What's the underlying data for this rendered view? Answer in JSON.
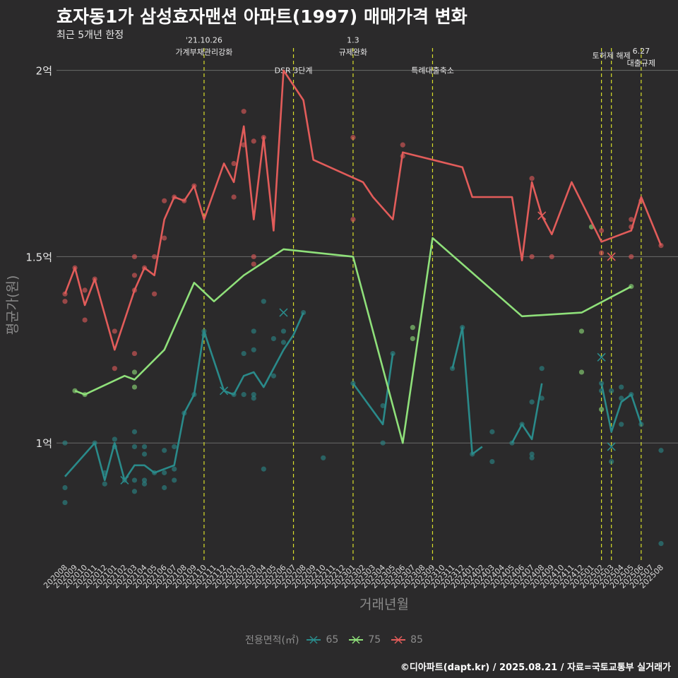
{
  "header": {
    "title": "효자동1가 삼성효자맨션 아파트(1997) 매매가격 변화",
    "subtitle": "최근 5개년 한정"
  },
  "caption": "©디아파트(dapt.kr) / 2025.08.21 / 자료=국토교통부 실거래가",
  "colors": {
    "background": "#2b2a2b",
    "s65": "#2a8a8a",
    "s75": "#8fe07a",
    "s85": "#e25c5a",
    "event_line": "#d8df2a",
    "grid": "#6a6a6a"
  },
  "chart_data": {
    "type": "line",
    "title": "효자동1가 삼성효자맨션 아파트(1997) 매매가격 변화",
    "subtitle": "최근 5개년 한정",
    "xlabel": "거래년월",
    "ylabel": "평균가(원)",
    "ylim": [
      0.68,
      2.06
    ],
    "y_ticks": [
      {
        "value": 1.0,
        "label": "1억"
      },
      {
        "value": 1.5,
        "label": "1.5억"
      },
      {
        "value": 2.0,
        "label": "2억"
      }
    ],
    "x_labels": [
      "202008",
      "202009",
      "202010",
      "202011",
      "202012",
      "202101",
      "202102",
      "202103",
      "202104",
      "202105",
      "202106",
      "202107",
      "202108",
      "202109",
      "202110",
      "202111",
      "202112",
      "202201",
      "202202",
      "202203",
      "202204",
      "202205",
      "202206",
      "202207",
      "202208",
      "202209",
      "202210",
      "202211",
      "202212",
      "202301",
      "202302",
      "202303",
      "202304",
      "202305",
      "202306",
      "202307",
      "202308",
      "202309",
      "202310",
      "202311",
      "202312",
      "202401",
      "202402",
      "202403",
      "202404",
      "202405",
      "202406",
      "202407",
      "202408",
      "202409",
      "202410",
      "202411",
      "202412",
      "202501",
      "202502",
      "202503",
      "202504",
      "202505",
      "202506",
      "202507",
      "202508"
    ],
    "legend": {
      "title": "전용면적(㎡)",
      "position": "bottom",
      "items": [
        "65",
        "75",
        "85"
      ]
    },
    "events": [
      {
        "x": 14,
        "lines": [
          "'21.10.26",
          "가계부채관리강화"
        ],
        "label_y": 2.05
      },
      {
        "x": 23,
        "lines": [
          "DSR 3단계"
        ],
        "label_y": 2.0
      },
      {
        "x": 29,
        "lines": [
          "1.3",
          "규제완화"
        ],
        "label_y": 2.05
      },
      {
        "x": 37,
        "lines": [
          "특례대출축소"
        ],
        "label_y": 2.0
      },
      {
        "x": 54,
        "lines": [],
        "label_y": 2.0
      },
      {
        "x": 55,
        "lines": [
          "토허제 해제"
        ],
        "label_y": 2.04
      },
      {
        "x": 58,
        "lines": [
          "6.27",
          "대출규제"
        ],
        "label_y": 2.02
      }
    ],
    "series": [
      {
        "name": "85",
        "color": "#e25c5a",
        "line": [
          [
            0,
            1.4
          ],
          [
            1,
            1.47
          ],
          [
            2,
            1.37
          ],
          [
            3,
            1.44
          ],
          [
            5,
            1.25
          ],
          [
            7,
            1.41
          ],
          [
            8,
            1.47
          ],
          [
            9,
            1.45
          ],
          [
            10,
            1.6
          ],
          [
            11,
            1.66
          ],
          [
            12,
            1.65
          ],
          [
            13,
            1.69
          ],
          [
            14,
            1.6
          ],
          [
            16,
            1.75
          ],
          [
            17,
            1.7
          ],
          [
            18,
            1.85
          ],
          [
            19,
            1.6
          ],
          [
            20,
            1.82
          ],
          [
            21,
            1.57
          ],
          [
            22,
            2.0
          ],
          [
            24,
            1.92
          ],
          [
            25,
            1.76
          ],
          [
            30,
            1.7
          ],
          [
            31,
            1.66
          ],
          [
            33,
            1.6
          ],
          [
            34,
            1.78
          ],
          [
            40,
            1.74
          ],
          [
            41,
            1.66
          ],
          [
            45,
            1.66
          ],
          [
            46,
            1.49
          ],
          [
            47,
            1.7
          ],
          [
            48,
            1.61
          ],
          [
            49,
            1.56
          ],
          [
            51,
            1.7
          ],
          [
            54,
            1.54
          ],
          [
            57,
            1.57
          ],
          [
            58,
            1.66
          ],
          [
            60,
            1.53
          ]
        ],
        "points": [
          [
            0,
            1.4
          ],
          [
            0,
            1.38
          ],
          [
            1,
            1.47
          ],
          [
            2,
            1.41
          ],
          [
            2,
            1.33
          ],
          [
            3,
            1.44
          ],
          [
            5,
            1.3
          ],
          [
            5,
            1.2
          ],
          [
            7,
            1.5
          ],
          [
            7,
            1.45
          ],
          [
            7,
            1.41
          ],
          [
            7,
            1.24
          ],
          [
            8,
            1.47
          ],
          [
            9,
            1.5
          ],
          [
            9,
            1.4
          ],
          [
            10,
            1.65
          ],
          [
            10,
            1.55
          ],
          [
            11,
            1.66
          ],
          [
            12,
            1.65
          ],
          [
            13,
            1.69
          ],
          [
            18,
            1.89
          ],
          [
            18,
            1.8
          ],
          [
            17,
            1.75
          ],
          [
            17,
            1.66
          ],
          [
            19,
            1.81
          ],
          [
            19,
            1.5
          ],
          [
            19,
            1.48
          ],
          [
            20,
            1.82
          ],
          [
            29,
            1.82
          ],
          [
            29,
            1.6
          ],
          [
            34,
            1.8
          ],
          [
            34,
            1.77
          ],
          [
            47,
            1.71
          ],
          [
            47,
            1.5
          ],
          [
            49,
            1.5
          ],
          [
            54,
            1.57
          ],
          [
            54,
            1.51
          ],
          [
            57,
            1.6
          ],
          [
            57,
            1.58
          ],
          [
            57,
            1.5
          ],
          [
            58,
            1.65
          ],
          [
            60,
            1.53
          ]
        ],
        "cancelled": [
          [
            48,
            1.61
          ],
          [
            55,
            1.5
          ]
        ]
      },
      {
        "name": "75",
        "color": "#8fe07a",
        "line": [
          [
            1,
            1.14
          ],
          [
            2,
            1.13
          ],
          [
            6,
            1.18
          ],
          [
            7,
            1.17
          ],
          [
            10,
            1.25
          ],
          [
            13,
            1.43
          ],
          [
            15,
            1.38
          ],
          [
            18,
            1.45
          ],
          [
            22,
            1.52
          ],
          [
            29,
            1.5
          ],
          [
            34,
            1.0
          ],
          [
            37,
            1.55
          ],
          [
            46,
            1.34
          ],
          [
            52,
            1.35
          ],
          [
            57,
            1.42
          ]
        ],
        "points": [
          [
            1,
            1.14
          ],
          [
            2,
            1.13
          ],
          [
            7,
            1.19
          ],
          [
            7,
            1.15
          ],
          [
            35,
            1.31
          ],
          [
            35,
            1.28
          ],
          [
            52,
            1.3
          ],
          [
            52,
            1.19
          ],
          [
            53,
            1.58
          ],
          [
            54,
            1.09
          ],
          [
            57,
            1.42
          ]
        ],
        "cancelled": []
      },
      {
        "name": "65",
        "color": "#2a8a8a",
        "segments": [
          [
            [
              0,
              0.91
            ],
            [
              3,
              1.0
            ],
            [
              4,
              0.9
            ],
            [
              5,
              1.0
            ],
            [
              6,
              0.9
            ],
            [
              7,
              0.94
            ],
            [
              8,
              0.94
            ],
            [
              9,
              0.92
            ],
            [
              11,
              0.94
            ],
            [
              12,
              1.08
            ],
            [
              13,
              1.13
            ],
            [
              14,
              1.3
            ],
            [
              16,
              1.14
            ],
            [
              17,
              1.13
            ],
            [
              18,
              1.18
            ],
            [
              19,
              1.19
            ],
            [
              20,
              1.15
            ],
            [
              22,
              1.25
            ],
            [
              23,
              1.29
            ],
            [
              24,
              1.35
            ]
          ],
          [
            [
              29,
              1.16
            ],
            [
              32,
              1.05
            ],
            [
              33,
              1.24
            ]
          ],
          [
            [
              39,
              1.2
            ],
            [
              40,
              1.31
            ],
            [
              41,
              0.97
            ],
            [
              42,
              0.99
            ]
          ],
          [
            [
              45,
              1.0
            ],
            [
              46,
              1.05
            ],
            [
              47,
              1.01
            ],
            [
              48,
              1.16
            ]
          ],
          [
            [
              54,
              1.16
            ],
            [
              55,
              1.03
            ],
            [
              56,
              1.11
            ],
            [
              57,
              1.13
            ],
            [
              58,
              1.05
            ]
          ]
        ],
        "points": [
          [
            0,
            1.0
          ],
          [
            0,
            0.88
          ],
          [
            0,
            0.84
          ],
          [
            3,
            1.0
          ],
          [
            4,
            0.92
          ],
          [
            4,
            0.89
          ],
          [
            5,
            1.01
          ],
          [
            5,
            0.99
          ],
          [
            6,
            0.9
          ],
          [
            7,
            1.03
          ],
          [
            7,
            0.99
          ],
          [
            7,
            0.9
          ],
          [
            7,
            0.87
          ],
          [
            8,
            0.99
          ],
          [
            8,
            0.97
          ],
          [
            8,
            0.9
          ],
          [
            8,
            0.89
          ],
          [
            9,
            0.92
          ],
          [
            10,
            0.98
          ],
          [
            10,
            0.92
          ],
          [
            10,
            0.88
          ],
          [
            11,
            0.99
          ],
          [
            11,
            0.93
          ],
          [
            11,
            0.9
          ],
          [
            12,
            1.08
          ],
          [
            13,
            1.13
          ],
          [
            14,
            1.3
          ],
          [
            14,
            1.29
          ],
          [
            17,
            1.13
          ],
          [
            18,
            1.13
          ],
          [
            18,
            1.24
          ],
          [
            19,
            1.3
          ],
          [
            19,
            1.25
          ],
          [
            19,
            1.13
          ],
          [
            19,
            1.12
          ],
          [
            20,
            1.38
          ],
          [
            20,
            0.93
          ],
          [
            21,
            1.28
          ],
          [
            21,
            1.18
          ],
          [
            22,
            1.3
          ],
          [
            22,
            1.27
          ],
          [
            24,
            1.35
          ],
          [
            26,
            0.96
          ],
          [
            29,
            1.16
          ],
          [
            32,
            1.1
          ],
          [
            32,
            1.0
          ],
          [
            33,
            1.24
          ],
          [
            39,
            1.2
          ],
          [
            40,
            1.31
          ],
          [
            41,
            0.97
          ],
          [
            43,
            1.03
          ],
          [
            43,
            0.95
          ],
          [
            45,
            1.0
          ],
          [
            46,
            1.05
          ],
          [
            47,
            1.11
          ],
          [
            47,
            0.97
          ],
          [
            47,
            0.96
          ],
          [
            48,
            1.2
          ],
          [
            48,
            1.12
          ],
          [
            54,
            1.16
          ],
          [
            54,
            1.14
          ],
          [
            55,
            0.95
          ],
          [
            55,
            1.14
          ],
          [
            56,
            1.15
          ],
          [
            56,
            1.12
          ],
          [
            56,
            1.05
          ],
          [
            57,
            1.13
          ],
          [
            58,
            1.05
          ],
          [
            60,
            0.98
          ],
          [
            60,
            0.73
          ]
        ],
        "cancelled": [
          [
            6,
            0.9
          ],
          [
            16,
            1.14
          ],
          [
            22,
            1.35
          ],
          [
            54,
            1.23
          ],
          [
            55,
            0.99
          ]
        ]
      }
    ]
  }
}
